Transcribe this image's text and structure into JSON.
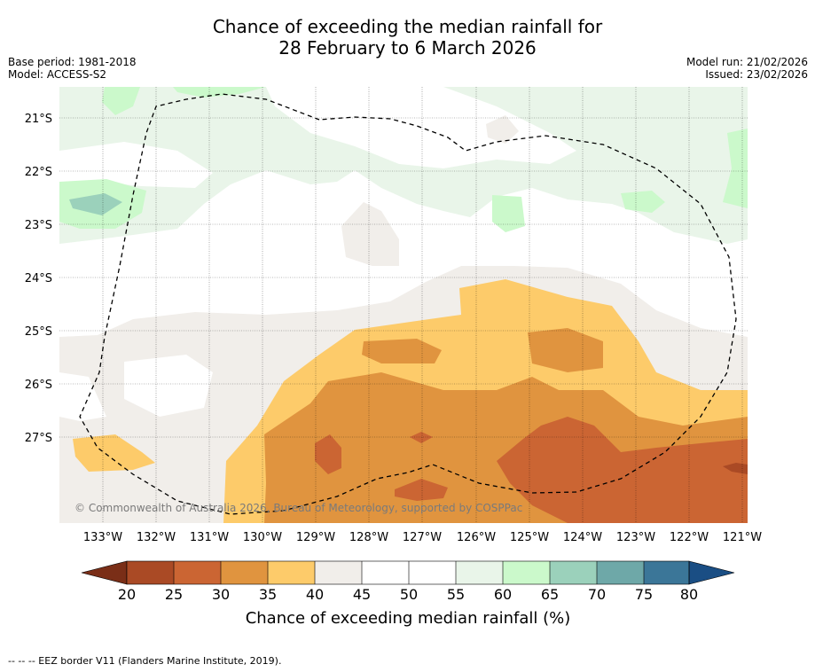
{
  "title": {
    "line1": "Chance of exceeding the median rainfall for",
    "line2": "28 February to 6 March 2026"
  },
  "meta": {
    "base_period": "Base period: 1981-2018",
    "model": "Model: ACCESS-S2",
    "model_run": "Model run: 21/02/2026",
    "issued": "Issued: 23/02/2026"
  },
  "map": {
    "lat_labels": [
      "21°S",
      "22°S",
      "23°S",
      "24°S",
      "25°S",
      "26°S",
      "27°S"
    ],
    "lon_labels": [
      "133°W",
      "132°W",
      "131°W",
      "130°W",
      "129°W",
      "128°W",
      "127°W",
      "126°W",
      "125°W",
      "124°W",
      "123°W",
      "122°W",
      "121°W"
    ],
    "copyright": "© Commonwealth of Australia 2026, Bureau of Meteorology, supported by COSPPac"
  },
  "legend": {
    "ticks": [
      "20",
      "25",
      "30",
      "35",
      "40",
      "45",
      "50",
      "55",
      "60",
      "65",
      "70",
      "75",
      "80"
    ],
    "title": "Chance of exceeding median rainfall (%)",
    "colors": {
      "below_20": "#7a2e17",
      "20_25": "#aa4a25",
      "25_30": "#cb6533",
      "30_35": "#e0943f",
      "35_40": "#fdcb6a",
      "40_45": "#f1eeea",
      "45_50": "#ffffff",
      "50_55": "#ffffff",
      "55_60": "#e9f5e9",
      "60_65": "#cbf9cb",
      "65_70": "#9bd1bb",
      "70_75": "#6ea8a8",
      "75_80": "#3b7698",
      "above_80": "#1a4e84"
    }
  },
  "footer": {
    "eez_note": "--  --  -- EEZ border V11 (Flanders Marine Institute, 2019)."
  }
}
